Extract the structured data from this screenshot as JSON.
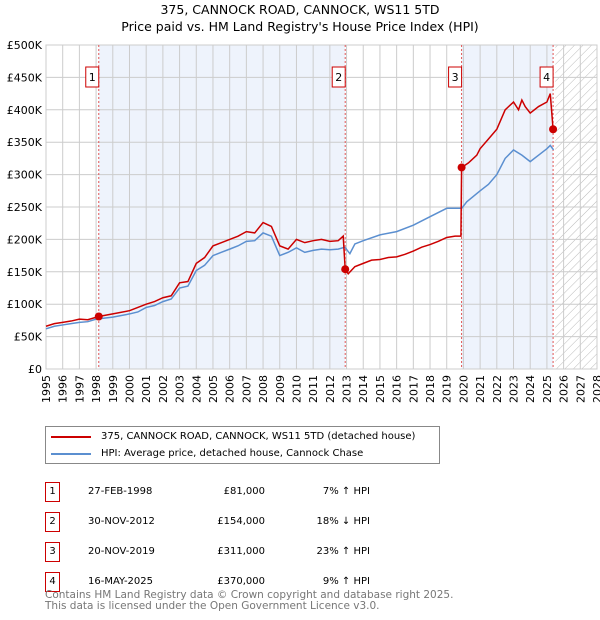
{
  "title": "375, CANNOCK ROAD, CANNOCK, WS11 5TD",
  "subtitle": "Price paid vs. HM Land Registry's House Price Index (HPI)",
  "chart_data": {
    "type": "line",
    "title": "375, CANNOCK ROAD, CANNOCK, WS11 5TD",
    "subtitle": "Price paid vs. HM Land Registry's House Price Index (HPI)",
    "xlim": [
      1995,
      2028
    ],
    "ylim": [
      0,
      500000
    ],
    "x_ticks": [
      "1995",
      "1996",
      "1997",
      "1998",
      "1999",
      "2000",
      "2001",
      "2002",
      "2003",
      "2004",
      "2005",
      "2006",
      "2007",
      "2008",
      "2009",
      "2010",
      "2011",
      "2012",
      "2013",
      "2014",
      "2015",
      "2016",
      "2017",
      "2018",
      "2019",
      "2020",
      "2021",
      "2022",
      "2023",
      "2024",
      "2025",
      "2026",
      "2027",
      "2028"
    ],
    "y_ticks": [
      {
        "v": 0,
        "l": "£0"
      },
      {
        "v": 50000,
        "l": "£50K"
      },
      {
        "v": 100000,
        "l": "£100K"
      },
      {
        "v": 150000,
        "l": "£150K"
      },
      {
        "v": 200000,
        "l": "£200K"
      },
      {
        "v": 250000,
        "l": "£250K"
      },
      {
        "v": 300000,
        "l": "£300K"
      },
      {
        "v": 350000,
        "l": "£350K"
      },
      {
        "v": 400000,
        "l": "£400K"
      },
      {
        "v": 450000,
        "l": "£450K"
      },
      {
        "v": 500000,
        "l": "£500K"
      }
    ],
    "grid": true,
    "shaded_ranges": [
      [
        1998.16,
        2012.92
      ],
      [
        2019.89,
        2025.37
      ]
    ],
    "hatched_from": 2025.5,
    "series": [
      {
        "name": "375, CANNOCK ROAD, CANNOCK, WS11 5TD (detached house)",
        "color": "#cc0000",
        "x": [
          1995,
          1995.5,
          1996,
          1996.5,
          1997,
          1997.5,
          1998.16,
          1999,
          2000,
          2000.5,
          2001,
          2001.5,
          2002,
          2002.5,
          2003,
          2003.5,
          2004,
          2004.5,
          2005,
          2005.5,
          2006,
          2006.5,
          2007,
          2007.5,
          2008,
          2008.5,
          2009,
          2009.5,
          2010,
          2010.5,
          2011,
          2011.5,
          2012,
          2012.5,
          2012.8,
          2012.92,
          2013.1,
          2013.5,
          2014,
          2014.5,
          2015,
          2015.5,
          2016,
          2016.5,
          2017,
          2017.5,
          2018,
          2018.5,
          2019,
          2019.5,
          2019.85,
          2019.89,
          2020.3,
          2020.8,
          2021,
          2021.5,
          2022,
          2022.5,
          2023,
          2023.3,
          2023.5,
          2023.7,
          2024,
          2024.5,
          2025,
          2025.2,
          2025.37
        ],
        "y": [
          66000,
          70000,
          72000,
          74000,
          77000,
          76000,
          81000,
          85000,
          90000,
          95000,
          100000,
          104000,
          110000,
          113000,
          133000,
          135000,
          163000,
          172000,
          190000,
          195000,
          200000,
          205000,
          212000,
          210000,
          226000,
          220000,
          190000,
          185000,
          200000,
          195000,
          198000,
          200000,
          197000,
          198000,
          205000,
          154000,
          147000,
          158000,
          163000,
          168000,
          169000,
          172000,
          173000,
          177000,
          182000,
          188000,
          192000,
          197000,
          203000,
          205000,
          205000,
          311000,
          318000,
          330000,
          340000,
          355000,
          370000,
          400000,
          412000,
          400000,
          415000,
          405000,
          395000,
          405000,
          412000,
          425000,
          370000
        ]
      },
      {
        "name": "HPI: Average price, detached house, Cannock Chase",
        "color": "#5b8fd0",
        "x": [
          1995,
          1995.5,
          1996,
          1996.5,
          1997,
          1997.5,
          1998,
          1999,
          2000,
          2000.5,
          2001,
          2001.5,
          2002,
          2002.5,
          2003,
          2003.5,
          2004,
          2004.5,
          2005,
          2005.5,
          2006,
          2006.5,
          2007,
          2007.5,
          2008,
          2008.5,
          2009,
          2009.5,
          2010,
          2010.5,
          2011,
          2011.5,
          2012,
          2012.5,
          2012.9,
          2013.2,
          2013.5,
          2014,
          2015,
          2016,
          2017,
          2018,
          2019,
          2019.9,
          2020.2,
          2021,
          2021.5,
          2022,
          2022.5,
          2023,
          2023.5,
          2024,
          2024.5,
          2025,
          2025.2,
          2025.4
        ],
        "y": [
          62000,
          66000,
          68000,
          70000,
          72000,
          73000,
          77000,
          80000,
          85000,
          88000,
          95000,
          98000,
          104000,
          108000,
          125000,
          128000,
          152000,
          160000,
          175000,
          180000,
          185000,
          190000,
          197000,
          198000,
          210000,
          205000,
          175000,
          180000,
          187000,
          180000,
          183000,
          185000,
          184000,
          185000,
          188000,
          178000,
          193000,
          198000,
          207000,
          212000,
          222000,
          235000,
          248000,
          248000,
          258000,
          275000,
          285000,
          300000,
          325000,
          338000,
          330000,
          320000,
          330000,
          340000,
          345000,
          338000
        ]
      }
    ],
    "sales": [
      {
        "n": "1",
        "x": 1998.16,
        "y": 81000
      },
      {
        "n": "2",
        "x": 2012.92,
        "y": 154000
      },
      {
        "n": "3",
        "x": 2019.89,
        "y": 311000
      },
      {
        "n": "4",
        "x": 2025.37,
        "y": 370000
      }
    ]
  },
  "legend": {
    "red": "375, CANNOCK ROAD, CANNOCK, WS11 5TD (detached house)",
    "blue": "HPI: Average price, detached house, Cannock Chase"
  },
  "table": [
    {
      "n": "1",
      "date": "27-FEB-1998",
      "price": "£81,000",
      "hpi": "7% ↑ HPI"
    },
    {
      "n": "2",
      "date": "30-NOV-2012",
      "price": "£154,000",
      "hpi": "18% ↓ HPI"
    },
    {
      "n": "3",
      "date": "20-NOV-2019",
      "price": "£311,000",
      "hpi": "23% ↑ HPI"
    },
    {
      "n": "4",
      "date": "16-MAY-2025",
      "price": "£370,000",
      "hpi": "9% ↑ HPI"
    }
  ],
  "footer": {
    "line1": "Contains HM Land Registry data © Crown copyright and database right 2025.",
    "line2": "This data is licensed under the Open Government Licence v3.0."
  }
}
